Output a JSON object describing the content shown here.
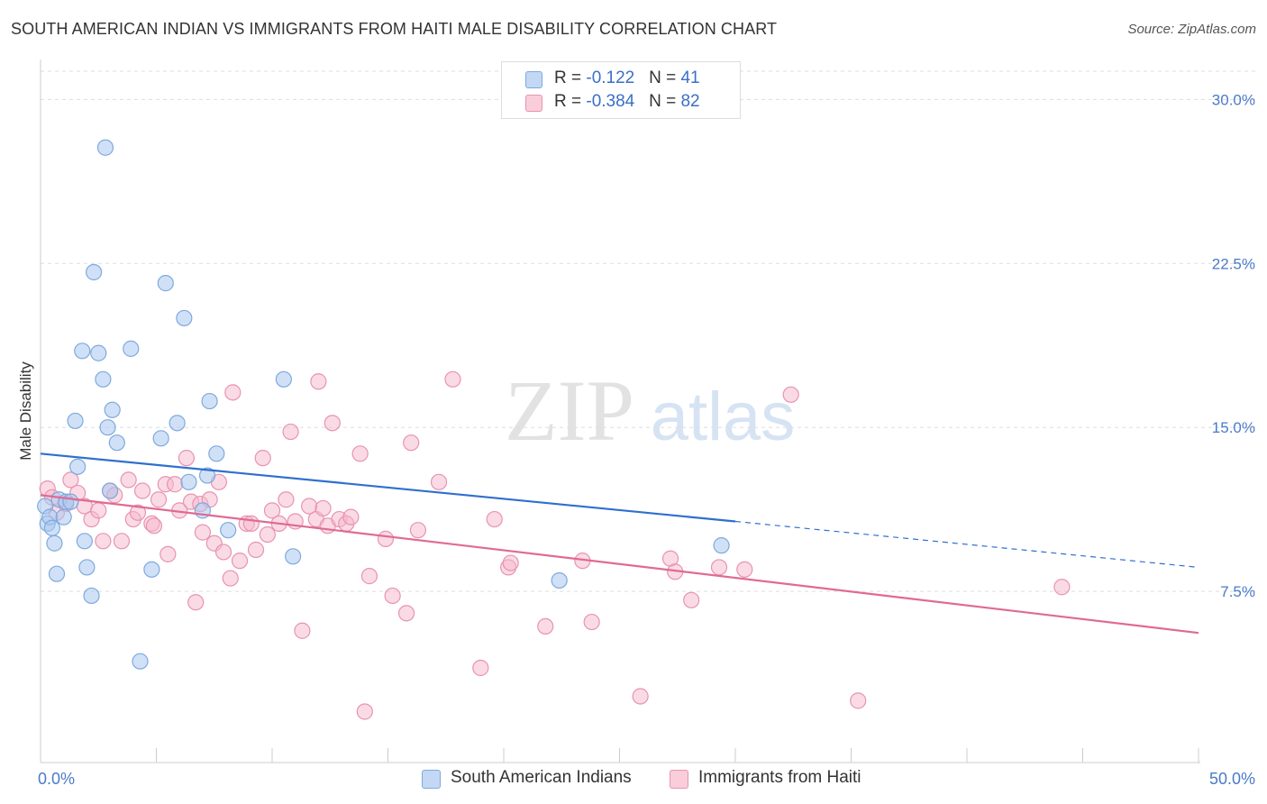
{
  "title": "SOUTH AMERICAN INDIAN VS IMMIGRANTS FROM HAITI MALE DISABILITY CORRELATION CHART",
  "source": "Source: ZipAtlas.com",
  "watermark": {
    "zip": "ZIP",
    "atlas": "atlas"
  },
  "colors": {
    "blue_fill": "#a9c8f0",
    "blue_stroke": "#7fa9dd",
    "blue_line": "#2f6fce",
    "pink_fill": "#f5b8cb",
    "pink_stroke": "#e893b0",
    "pink_line": "#e06a94",
    "axis_text": "#4a7bc8",
    "grid": "#dddddd"
  },
  "legend_top": {
    "rows": [
      {
        "r_label": "R = ",
        "r_value": "-0.122",
        "n_label": "N = ",
        "n_value": "41"
      },
      {
        "r_label": "R = ",
        "r_value": "-0.384",
        "n_label": "N = ",
        "n_value": "82"
      }
    ]
  },
  "legend_bottom": [
    "South American Indians",
    "Immigrants from Haiti"
  ],
  "chart_data": {
    "type": "scatter",
    "title": "SOUTH AMERICAN INDIAN VS IMMIGRANTS FROM HAITI MALE DISABILITY CORRELATION CHART",
    "xlabel": "",
    "ylabel": "Male Disability",
    "xlim": [
      0,
      50
    ],
    "ylim": [
      0,
      31.5
    ],
    "x_tick_labels": [
      "0.0%",
      "50.0%"
    ],
    "y_ticks": [
      7.5,
      15.0,
      22.5,
      30.0
    ],
    "y_tick_labels": [
      "7.5%",
      "15.0%",
      "22.5%",
      "30.0%"
    ],
    "legend_position": "top-center",
    "series": [
      {
        "name": "South American Indians",
        "r": -0.122,
        "n": 41,
        "trend": {
          "x0": 0,
          "y0": 13.8,
          "x1": 30,
          "y1": 10.7,
          "dashed_to_x": 50,
          "dashed_to_y": 8.6
        },
        "points": [
          [
            0.2,
            11.4
          ],
          [
            0.3,
            10.6
          ],
          [
            0.4,
            10.9
          ],
          [
            0.5,
            10.4
          ],
          [
            0.6,
            9.7
          ],
          [
            0.7,
            8.3
          ],
          [
            0.8,
            11.7
          ],
          [
            1.0,
            10.9
          ],
          [
            1.1,
            11.6
          ],
          [
            1.3,
            11.6
          ],
          [
            1.5,
            15.3
          ],
          [
            1.6,
            13.2
          ],
          [
            1.8,
            18.5
          ],
          [
            1.9,
            9.8
          ],
          [
            2.0,
            8.6
          ],
          [
            2.2,
            7.3
          ],
          [
            2.3,
            22.1
          ],
          [
            2.5,
            18.4
          ],
          [
            2.7,
            17.2
          ],
          [
            2.8,
            27.8
          ],
          [
            2.9,
            15.0
          ],
          [
            3.0,
            12.1
          ],
          [
            3.1,
            15.8
          ],
          [
            3.3,
            14.3
          ],
          [
            3.9,
            18.6
          ],
          [
            4.3,
            4.3
          ],
          [
            4.8,
            8.5
          ],
          [
            5.2,
            14.5
          ],
          [
            5.4,
            21.6
          ],
          [
            5.9,
            15.2
          ],
          [
            6.2,
            20.0
          ],
          [
            6.4,
            12.5
          ],
          [
            7.0,
            11.2
          ],
          [
            7.2,
            12.8
          ],
          [
            7.3,
            16.2
          ],
          [
            7.6,
            13.8
          ],
          [
            8.1,
            10.3
          ],
          [
            10.5,
            17.2
          ],
          [
            10.9,
            9.1
          ],
          [
            22.4,
            8.0
          ],
          [
            29.4,
            9.6
          ]
        ]
      },
      {
        "name": "Immigrants from Haiti",
        "r": -0.384,
        "n": 82,
        "trend": {
          "x0": 0,
          "y0": 11.9,
          "x1": 50,
          "y1": 5.6
        },
        "points": [
          [
            0.3,
            12.2
          ],
          [
            0.5,
            11.8
          ],
          [
            0.7,
            11.1
          ],
          [
            1.1,
            11.5
          ],
          [
            1.3,
            12.6
          ],
          [
            1.6,
            12.0
          ],
          [
            1.9,
            11.4
          ],
          [
            2.2,
            10.8
          ],
          [
            2.5,
            11.2
          ],
          [
            2.7,
            9.8
          ],
          [
            3.0,
            12.1
          ],
          [
            3.2,
            11.9
          ],
          [
            3.5,
            9.8
          ],
          [
            3.8,
            12.6
          ],
          [
            4.0,
            10.8
          ],
          [
            4.2,
            11.1
          ],
          [
            4.4,
            12.1
          ],
          [
            4.8,
            10.6
          ],
          [
            4.9,
            10.5
          ],
          [
            5.1,
            11.7
          ],
          [
            5.4,
            12.4
          ],
          [
            5.5,
            9.2
          ],
          [
            5.8,
            12.4
          ],
          [
            6.0,
            11.2
          ],
          [
            6.3,
            13.6
          ],
          [
            6.5,
            11.6
          ],
          [
            6.7,
            7.0
          ],
          [
            6.9,
            11.5
          ],
          [
            7.0,
            10.2
          ],
          [
            7.3,
            11.7
          ],
          [
            7.5,
            9.7
          ],
          [
            7.7,
            12.5
          ],
          [
            7.9,
            9.3
          ],
          [
            8.2,
            8.1
          ],
          [
            8.3,
            16.6
          ],
          [
            8.6,
            8.9
          ],
          [
            8.9,
            10.6
          ],
          [
            9.1,
            10.6
          ],
          [
            9.3,
            9.4
          ],
          [
            9.6,
            13.6
          ],
          [
            9.8,
            10.1
          ],
          [
            10.0,
            11.2
          ],
          [
            10.3,
            10.6
          ],
          [
            10.6,
            11.7
          ],
          [
            10.8,
            14.8
          ],
          [
            11.0,
            10.7
          ],
          [
            11.3,
            5.7
          ],
          [
            11.6,
            11.4
          ],
          [
            11.9,
            10.8
          ],
          [
            12.0,
            17.1
          ],
          [
            12.2,
            11.3
          ],
          [
            12.4,
            10.5
          ],
          [
            12.6,
            15.2
          ],
          [
            12.9,
            10.8
          ],
          [
            13.2,
            10.6
          ],
          [
            13.4,
            10.9
          ],
          [
            13.8,
            13.8
          ],
          [
            14.0,
            2.0
          ],
          [
            14.2,
            8.2
          ],
          [
            14.9,
            9.9
          ],
          [
            15.2,
            7.3
          ],
          [
            15.8,
            6.5
          ],
          [
            16.0,
            14.3
          ],
          [
            16.3,
            10.3
          ],
          [
            17.2,
            12.5
          ],
          [
            17.8,
            17.2
          ],
          [
            19.0,
            4.0
          ],
          [
            19.6,
            10.8
          ],
          [
            20.2,
            8.6
          ],
          [
            20.3,
            8.8
          ],
          [
            21.8,
            5.9
          ],
          [
            23.8,
            6.1
          ],
          [
            25.9,
            2.7
          ],
          [
            27.2,
            9.0
          ],
          [
            27.4,
            8.4
          ],
          [
            28.1,
            7.1
          ],
          [
            29.3,
            8.6
          ],
          [
            32.4,
            16.5
          ],
          [
            35.3,
            2.5
          ],
          [
            44.1,
            7.7
          ],
          [
            30.4,
            8.5
          ],
          [
            23.4,
            8.9
          ]
        ]
      }
    ]
  }
}
